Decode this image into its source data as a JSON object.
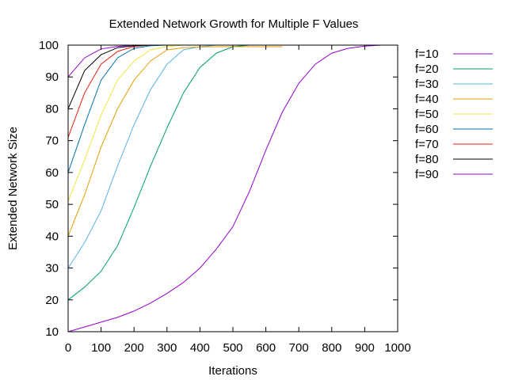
{
  "chart_data": {
    "type": "line",
    "title": "Extended Network Growth for Multiple F Values",
    "xlabel": "Iterations",
    "ylabel": "Extended Network Size",
    "xlim": [
      0,
      1000
    ],
    "ylim": [
      10,
      100
    ],
    "xticks": [
      "0",
      "100",
      "200",
      "300",
      "400",
      "500",
      "600",
      "700",
      "800",
      "900",
      "1000"
    ],
    "yticks": [
      "10",
      "20",
      "30",
      "40",
      "50",
      "60",
      "70",
      "80",
      "90",
      "100"
    ],
    "grid": false,
    "legend_position": "right",
    "series": [
      {
        "name": "f=10",
        "color": "#9400d3",
        "x": [
          0,
          50,
          100,
          150,
          200,
          250,
          300,
          350,
          400,
          450,
          500,
          550,
          600,
          650,
          700,
          750,
          800,
          850,
          900,
          950,
          1000
        ],
        "y": [
          10,
          11.5,
          13,
          14.5,
          16.5,
          19,
          22,
          25.5,
          30,
          36,
          43,
          54,
          67,
          79,
          88,
          94,
          97.5,
          99,
          99.7,
          100,
          100
        ]
      },
      {
        "name": "f=20",
        "color": "#009e73",
        "x": [
          0,
          50,
          100,
          150,
          200,
          250,
          300,
          350,
          400,
          450,
          500,
          550,
          600
        ],
        "y": [
          20,
          24,
          29,
          37,
          49,
          62,
          74,
          85,
          93,
          97.5,
          99.5,
          100,
          100
        ]
      },
      {
        "name": "f=30",
        "color": "#56b4e9",
        "x": [
          0,
          50,
          100,
          150,
          200,
          250,
          300,
          350,
          400,
          450,
          500
        ],
        "y": [
          30,
          38,
          48,
          62,
          75,
          86,
          94,
          98.5,
          99.5,
          100,
          100
        ]
      },
      {
        "name": "f=40",
        "color": "#e69f00",
        "x": [
          0,
          50,
          100,
          150,
          200,
          250,
          300,
          350,
          400,
          450,
          500,
          550,
          600,
          650
        ],
        "y": [
          40,
          53,
          68,
          80,
          89,
          95,
          98.5,
          99.2,
          99.4,
          99.5,
          99.5,
          99.5,
          99.5,
          99.5
        ]
      },
      {
        "name": "f=50",
        "color": "#f0e442",
        "x": [
          0,
          50,
          100,
          150,
          200,
          250,
          300,
          350,
          400,
          450,
          500,
          550,
          600,
          650
        ],
        "y": [
          51,
          64,
          78,
          89,
          95,
          98.5,
          99.6,
          100,
          100,
          100,
          100,
          100,
          100,
          100
        ]
      },
      {
        "name": "f=60",
        "color": "#0072b2",
        "x": [
          0,
          50,
          100,
          150,
          200,
          250,
          300
        ],
        "y": [
          60,
          75,
          89,
          96,
          99,
          99.8,
          100
        ]
      },
      {
        "name": "f=70",
        "color": "#e51e10",
        "x": [
          0,
          50,
          100,
          150,
          200,
          250
        ],
        "y": [
          71,
          85,
          94,
          98,
          99.6,
          100
        ]
      },
      {
        "name": "f=80",
        "color": "#000000",
        "x": [
          0,
          50,
          100,
          150,
          200,
          250
        ],
        "y": [
          80,
          92,
          97,
          99.2,
          99.8,
          100
        ]
      },
      {
        "name": "f=90",
        "color": "#9400d3",
        "x": [
          0,
          50,
          100,
          150,
          200,
          250
        ],
        "y": [
          90,
          96,
          98.8,
          99.6,
          100,
          100
        ]
      }
    ]
  }
}
